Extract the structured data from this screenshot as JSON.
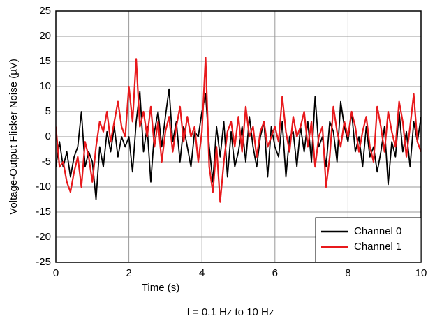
{
  "chart_data": {
    "type": "line",
    "xlabel": "Time (s)",
    "ylabel": "Voltage-Output Flicker Noise (µV)",
    "caption": "f = 0.1 Hz to 10 Hz",
    "x": [
      0,
      0.1,
      0.2,
      0.3,
      0.4,
      0.5,
      0.6,
      0.7,
      0.8,
      0.9,
      1,
      1.1,
      1.2,
      1.3,
      1.4,
      1.5,
      1.6,
      1.7,
      1.8,
      1.9,
      2,
      2.1,
      2.2,
      2.3,
      2.4,
      2.5,
      2.6,
      2.7,
      2.8,
      2.9,
      3,
      3.1,
      3.2,
      3.3,
      3.4,
      3.5,
      3.6,
      3.7,
      3.8,
      3.9,
      4,
      4.1,
      4.2,
      4.3,
      4.4,
      4.5,
      4.6,
      4.7,
      4.8,
      4.9,
      5,
      5.1,
      5.2,
      5.3,
      5.4,
      5.5,
      5.6,
      5.7,
      5.8,
      5.9,
      6,
      6.1,
      6.2,
      6.3,
      6.4,
      6.5,
      6.6,
      6.7,
      6.8,
      6.9,
      7,
      7.1,
      7.2,
      7.3,
      7.4,
      7.5,
      7.6,
      7.7,
      7.8,
      7.9,
      8,
      8.1,
      8.2,
      8.3,
      8.4,
      8.5,
      8.6,
      8.7,
      8.8,
      8.9,
      9,
      9.1,
      9.2,
      9.3,
      9.4,
      9.5,
      9.6,
      9.7,
      9.8,
      9.9,
      10
    ],
    "series": [
      {
        "name": "Channel 0",
        "color": "#000000",
        "values": [
          -6,
          -1,
          -6,
          -3,
          -8,
          -4,
          -2,
          5,
          -6,
          -3,
          -5,
          -12.5,
          -2,
          -6,
          1,
          -3,
          2,
          -4,
          0,
          -2,
          0,
          -7,
          3,
          9,
          -3,
          2,
          -9,
          1,
          5,
          -2,
          4,
          9.5,
          -1,
          3,
          -5,
          2,
          -2,
          -6,
          1,
          0,
          5,
          8.5,
          -2,
          -9,
          2,
          -4,
          3,
          -8,
          1,
          -6,
          -3,
          2,
          -5,
          4,
          -2,
          -6,
          0,
          3,
          -8,
          2,
          -2,
          -4,
          3,
          -8,
          0,
          1,
          -6,
          2,
          -3,
          3,
          -5,
          8,
          -2,
          0,
          -6,
          3,
          1,
          -5,
          7,
          2,
          -1,
          5,
          -3,
          0,
          -6,
          2,
          -4,
          -2,
          -7,
          -3,
          2,
          -9.5,
          -1,
          -4,
          5,
          -3,
          1,
          -6,
          3,
          -1,
          4
        ]
      },
      {
        "name": "Channel 1",
        "color": "#e8191c",
        "values": [
          2,
          -6,
          -5,
          -9,
          -11,
          -7,
          -4,
          -10,
          -1,
          -4,
          -9,
          -2,
          3,
          1,
          5,
          -1,
          3,
          7,
          2,
          0,
          10,
          3,
          15.5,
          2,
          5,
          0,
          6,
          -2,
          3,
          -5,
          1,
          4,
          -3,
          2,
          6,
          -1,
          4,
          0,
          2,
          -5,
          1,
          15.8,
          -6,
          -11,
          -2,
          -13,
          -5,
          1,
          3,
          -2,
          4,
          -3,
          6,
          0,
          2,
          -4,
          1,
          3,
          -2,
          0,
          2,
          -1,
          8,
          1,
          -3,
          4,
          0,
          2,
          5,
          -2,
          3,
          -6,
          0,
          2,
          -10,
          -4,
          6,
          1,
          -2,
          3,
          0,
          5,
          2,
          -3,
          1,
          4,
          -2,
          -5,
          6,
          2,
          -3,
          5,
          1,
          -2,
          7,
          3,
          -4,
          2,
          8.5,
          -1,
          -3
        ]
      }
    ],
    "xlim": [
      0,
      10
    ],
    "xticks": [
      0,
      2,
      4,
      6,
      8,
      10
    ],
    "ylim": [
      -25,
      25
    ],
    "yticks": [
      -25,
      -20,
      -15,
      -10,
      -5,
      0,
      5,
      10,
      15,
      20,
      25
    ],
    "grid": true,
    "legend": "lower right"
  }
}
